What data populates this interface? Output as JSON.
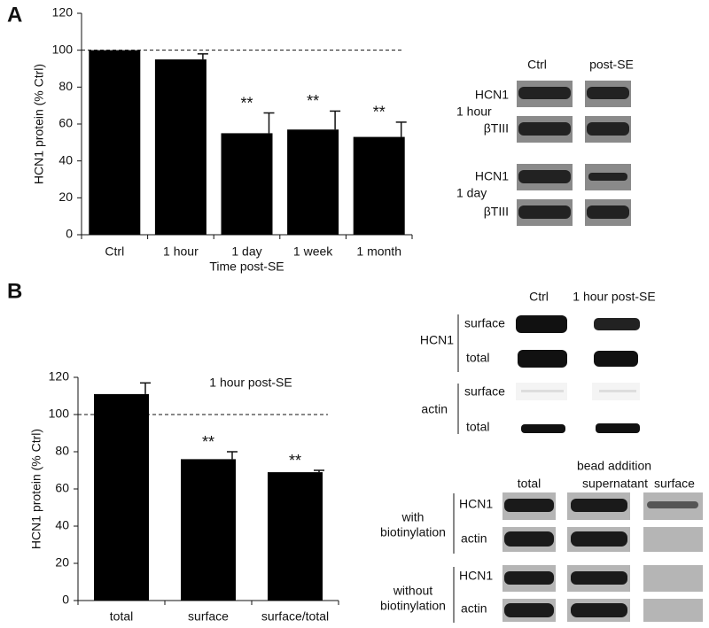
{
  "panel_labels": [
    "A",
    "B"
  ],
  "chart_data": [
    {
      "type": "bar",
      "categories": [
        "Ctrl",
        "1 hour",
        "1 day",
        "1 week",
        "1 month"
      ],
      "values": [
        100,
        95,
        55,
        57,
        53
      ],
      "errors": [
        null,
        3,
        11,
        10,
        8
      ],
      "significance": [
        null,
        null,
        "**",
        "**",
        "**"
      ],
      "xlabel": "Time post-SE",
      "ylabel": "HCN1 protein (% Ctrl)",
      "ylim": [
        0,
        120
      ],
      "yticks": [
        0,
        20,
        40,
        60,
        80,
        100,
        120
      ],
      "reference_line": 100,
      "color": "#000000"
    },
    {
      "type": "bar",
      "categories": [
        "total",
        "surface",
        "surface/total"
      ],
      "values": [
        111,
        76,
        69
      ],
      "errors": [
        6,
        4,
        1
      ],
      "significance": [
        null,
        "**",
        "**"
      ],
      "annotation": "1 hour post-SE",
      "ylabel": "HCN1 protein (% Ctrl)",
      "ylim": [
        0,
        120
      ],
      "yticks": [
        0,
        20,
        40,
        60,
        80,
        100,
        120
      ],
      "reference_line": 100,
      "color": "#000000"
    }
  ],
  "blots_a": {
    "columns": [
      "Ctrl",
      "post-SE"
    ],
    "groups": [
      {
        "label": "1 hour",
        "rows": [
          "HCN1",
          "βTIII"
        ]
      },
      {
        "label": "1 day",
        "rows": [
          "HCN1",
          "βTIII"
        ]
      }
    ]
  },
  "blots_b_top": {
    "columns": [
      "Ctrl",
      "1 hour post-SE"
    ],
    "groups": [
      {
        "label": "HCN1",
        "rows": [
          "surface",
          "total"
        ]
      },
      {
        "label": "actin",
        "rows": [
          "surface",
          "total"
        ]
      }
    ]
  },
  "blots_b_bottom": {
    "columns": [
      [
        "total"
      ],
      [
        "bead addition",
        "supernatant"
      ],
      [
        "surface"
      ]
    ],
    "groups": [
      {
        "label": [
          "with",
          "biotinylation"
        ],
        "rows": [
          "HCN1",
          "actin"
        ]
      },
      {
        "label": [
          "without",
          "biotinylation"
        ],
        "rows": [
          "HCN1",
          "actin"
        ]
      }
    ]
  }
}
